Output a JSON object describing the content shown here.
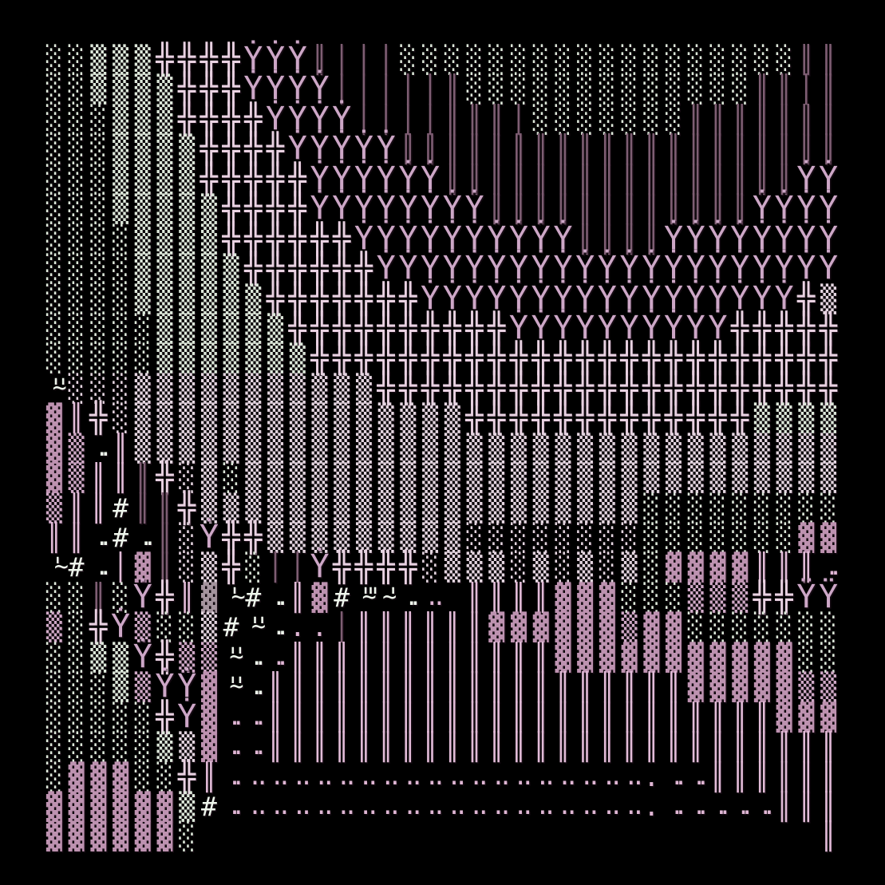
{
  "scene": {
    "kind": "ascii-terrain-map",
    "background": "#000000",
    "glyph_legend": [
      {
        "glyph": "░",
        "name": "light-shade-terrain"
      },
      {
        "glyph": "▒",
        "name": "medium-shade-terrain"
      },
      {
        "glyph": "▓",
        "name": "dark-shade-terrain"
      },
      {
        "glyph": "╬",
        "name": "double-cross-tree"
      },
      {
        "glyph": "Ẏ",
        "name": "tree-one-dot"
      },
      {
        "glyph": "Ÿ",
        "name": "tree-two-dots"
      },
      {
        "glyph": "║",
        "name": "double-pipe-trunk"
      },
      {
        "glyph": "│",
        "name": "single-pipe-trunk"
      },
      {
        "glyph": "#",
        "name": "hash-marker"
      },
      {
        "glyph": "'~'",
        "name": "wave-marker"
      },
      {
        "glyph": ".",
        "name": "dot-ground"
      }
    ]
  },
  "palette": {
    "w": "#dde8da",
    "m": "#e4d6e0",
    "M": "#cfa9c6",
    "B": "#bd92b0",
    "g": "#a5949e",
    "p": "#e9d2e2",
    "P": "#cda7c7",
    "R": "#e2bcd8",
    "d": "#7e5e73",
    "W": "#eef6ec",
    "k": "#dfb6d4"
  },
  "grid": {
    "cols": 36,
    "rows": [
      "░|w,░|w,▒|w,▒|w,▒|w,╬|p,╬|p,╬|p,╬|p,Ẏ|P,Ẏ|P,Ẏ|P,║|d,│|d,│|d,│|d,░|w,░|w,░|w,░|w,░|w,░|w,░|w,░|w,░|w,░|w,░|w,░|w,░|w,░|w,░|w,░|w,░|w,░|w,║|d,║|d",
      "░|w,░|w,▒|w,▒|w,▒|w,▒|w,╬|p,╬|p,╬|p,Ẏ|P,Ẏ|P,Ẏ|P,Ẏ|P,│|d,│|d,│|d,│|d,│|d,║|d,░|w,░|w,░|w,░|w,░|w,░|w,░|w,░|w,░|w,░|w,░|w,░|w,░|w,║|d,║|d,│|d,║|d",
      "░|w,░|w,░|w,▒|w,▒|w,▒|w,╬|p,╬|p,╬|p,╬|p,Ẏ|P,Ẏ|P,Ẏ|P,Ẏ|P,│|d,│|d,│|d,│|d,║|d,║|d,║|d,│|d,░|w,░|w,░|w,░|w,░|w,░|w,░|w,║|d,║|d,║|d,║|d,║|d,║|d,║|d",
      "░|w,░|w,░|w,▒|w,▒|w,▒|w,▒|w,╬|p,╬|p,╬|p,╬|p,Ẏ|P,Ẏ|P,Ẏ|P,Ẏ|P,Ẏ|P,║|d,║|d,║|d,║|d,║|d,║|d,║|d,║|d,║|d,║|d,║|d,║|d,║|d,║|d,║|d,║|d,║|d,║|d,║|d,║|d",
      "░|w,░|w,░|w,▒|w,▒|w,▒|w,▒|w,╬|p,╬|p,╬|p,╬|p,╬|p,Ẏ|P,Ẏ|P,Ẏ|P,Ẏ|P,Ẏ|P,Ẏ|P,║|d,║|d,║|d,║|d,║|d,║|d,║|d,║|d,║|d,║|d,║|d,║|d,║|d,║|d,║|d,║|d,Ẏ|P,Ẏ|P",
      "░|w,░|w,░|w,▒|w,▒|w,▒|w,▒|w,▒|w,╬|p,╬|p,╬|p,╬|p,Ẏ|P,Ẏ|P,Ẏ|P,Ẏ|P,Ẏ|P,Ẏ|P,Ẏ|P,Ẏ|P,║|d,║|d,║|d,║|d,║|d,║|d,║|d,║|d,║|d,║|d,║|d,║|d,Ẏ|P,Ẏ|P,Ẏ|P,Ẏ|P",
      "░|w,░|w,░|w,░|w,▒|w,▒|w,▒|w,▒|w,╬|p,╬|p,╬|p,╬|p,╬|p,╬|p,Ẏ|P,Ẏ|P,Ẏ|P,Ẏ|P,Ẏ|P,Ẏ|P,Ẏ|P,Ẏ|P,Ẏ|P,Ẏ|P,║|d,║|d,║|d,║|d,Ẏ|P,Ẏ|P,Ẏ|P,Ẏ|P,Ẏ|P,Ẏ|P,Ẏ|P,Ẏ|P",
      "░|w,░|w,░|w,░|w,▒|w,▒|w,▒|w,▒|w,▒|w,╬|p,╬|p,╬|p,╬|p,╬|p,╬|p,Ẏ|P,Ẏ|P,Ẏ|P,Ẏ|P,Ẏ|P,Ẏ|P,Ẏ|P,Ẏ|P,Ẏ|P,Ẏ|P,Ẏ|P,Ẏ|P,Ẏ|P,Ẏ|P,Ẏ|P,Ẏ|P,Ẏ|P,Ẏ|P,Ẏ|P,Ẏ|P,Ẏ|P",
      "░|w,░|w,░|w,░|w,▒|w,▒|w,▒|w,▒|w,▒|w,▒|w,╬|p,╬|p,╬|p,╬|p,╬|p,╬|p,╬|p,Ẏ|P,Ẏ|P,Ẏ|P,Ẏ|P,Ẏ|P,Ẏ|P,Ẏ|P,Ẏ|P,Ẏ|P,Ẏ|P,Ẏ|P,Ẏ|P,Ẏ|P,Ẏ|P,Ẏ|P,Ẏ|P,Ẏ|P,╬|p,▒|m",
      "░|w,░|w,░|w,░|w,░|w,▒|w,▒|w,▒|w,▒|w,▒|w,▒|w,╬|p,╬|p,╬|p,╬|p,╬|p,╬|p,╬|p,╬|p,╬|p,╬|p,Ẏ|P,Ẏ|P,Ẏ|P,Ẏ|P,Ẏ|P,Ẏ|P,Ẏ|P,Ẏ|P,Ẏ|P,Ẏ|P,╬|p,╬|p,╬|p,╬|p,╬|p",
      "░|w,░|w,░|w,░|w,░|w,▒|w,▒|w,▒|w,▒|w,▒|w,▒|w,▒|w,╬|p,╬|p,╬|p,╬|p,╬|p,╬|p,╬|p,╬|p,╬|p,╬|p,╬|p,╬|p,╬|p,╬|p,╬|p,╬|p,╬|p,╬|p,╬|p,╬|p,╬|p,╬|p,╬|p,╬|p",
      "'~'|W,░|m,░|m,░|m,▒|m,▒|m,▒|m,▒|m,▒|m,▒|m,▒|m,▒|m,▒|m,▒|m,▒|m,╬|p,╬|p,╬|p,╬|p,╬|p,╬|p,╬|p,╬|p,╬|p,╬|p,╬|p,╬|p,╬|p,╬|p,╬|p,╬|p,╬|p,╬|p,╬|p,╬|p,╬|p",
      "▓|B,║|R,╬|p,░|m,▒|m,▒|m,▒|m,▒|m,▒|m,▒|m,▒|m,▒|m,▒|m,▒|m,▒|m,▒|m,▒|m,▒|m,▒|m,╬|p,╬|p,╬|p,╬|p,╬|p,╬|p,╬|p,╬|p,╬|p,╬|p,╬|p,╬|p,╬|p,▒|w,▒|w,▒|w,▒|w",
      "▓|B,▒|M,..|W,║|R,▒|m,▒|m,▒|m,▒|m,▒|m,▒|m,▒|m,▒|m,▒|m,▒|m,▒|m,▒|m,▒|m,▒|m,▒|m,▒|m,▒|m,▒|m,▒|m,▒|m,▒|m,▒|m,▒|m,▒|m,▒|m,▒|m,▒|m,▒|m,▒|m,▒|m,▒|m,▒|m",
      "▓|B,▒|M,║|R,║|R,║|d,╬|p,░|m,▒|m,░|w,▒|m,▒|m,▒|m,▒|m,▒|m,▒|m,▒|m,▒|m,▒|m,▒|m,▒|m,▒|m,▒|m,▒|m,▒|m,▒|m,▒|m,▒|m,▒|m,▒|m,▒|m,▒|m,▒|m,▒|m,▒|m,▒|m,▒|m",
      "▒|M,║|R,║|R,#|W,║|d,║|d,╬|p,▒|m,▒|m,▒|m,▒|m,▒|m,▒|m,▒|m,▒|m,▒|m,▒|m,▒|m,▒|m,▒|m,▒|m,▒|m,▒|m,▒|m,▒|m,▒|m,▒|m,░|w,░|w,░|w,░|w,░|w,░|w,░|w,░|w,░|w",
      "║|R,║|R,..|W,#|W,..|W,║|d,░|m,Ẏ|P,╬|p,╬|p,▒|m,▒|m,▒|m,▒|m,▒|m,▒|m,▒|m,▒|m,▒|m,░|m,░|m,░|m,░|m,░|m,░|m,░|m,░|m,░|w,░|w,░|w,░|w,░|w,░|w,░|w,▓|B,▓|B",
      "'~|W,#|W,..|W,│|R,▓|B,║|d,░|m,▒|m,╬|p,░|w,│|d,│|d,Ẏ|P,╬|p,╬|p,╬|p,╬|p,░|m,▒|m,▒|m,▒|m,░|m,▒|m,░|m,▒|m,░|m,▒|m,░|w,▓|B,▓|B,▓|B,▓|B,║|R,║|R,║|R,..|k",
      "░|w,░|w,║|d,░|w,Ẏ|P,╬|p,║|R,▓|g,'~|W,#|W,..|W,║|R,▓|B,#|W,'~\"|W,~'|W,..|W,. .|k,,║|R,║|R,║|R,║|R,▓|B,▓|B,▓|B,░|w,░|w,░|w,▒|M,▒|M,▒|M,╬|p,╬|p,Ÿ|P,Ÿ|P",
      "▒|M,░|w,╬|p,Ẏ|P,▒|M,░|w,░|w,▒|m,#|W,'~'|W,..|W,.|k,.|k,│|d,║|R,║|R,║|R,║|R,║|R,║|R,▓|B,▓|B,▓|B,▓|B,▓|B,▓|B,▒|M,▓|B,▓|B,░|w,░|w,░|w,░|w,░|w,░|w,░|w",
      "░|w,░|w,▒|w,▒|w,Ẏ|P,╬|p,▒|M,▒|M,'~'|W,..|W,..|k,║|R,║|R,║|R,║|R,║|R,║|R,║|R,║|R,║|R,║|R,║|R,║|R,▓|B,▓|B,▓|B,▓|B,▓|B,▓|B,▓|B,▓|B,▓|B,▓|B,▓|B,░|w,░|w",
      "░|w,░|w,░|w,▒|w,▒|M,Ẏ|P,Ẏ|P,▓|B,'~'|W,..|W,║|R,║|R,║|R,║|R,║|R,║|R,║|R,║|R,║|R,║|R,║|R,║|R,║|R,║|R,║|R,║|R,║|R,║|R,║|R,▓|B,▓|B,▓|B,▓|B,▓|B,▒|M,▒|M",
      "░|w,░|w,░|w,░|w,░|w,╬|p,Ẏ|P,▓|B,..|k,..|k,║|R,║|R,║|R,║|R,║|R,║|R,║|R,║|R,║|R,║|R,║|R,║|R,║|R,║|R,║|R,║|R,║|R,║|R,║|R,║|R,║|R,║|R,║|R,▓|B,▓|B,▓|B",
      "░|w,░|w,░|w,░|w,░|w,▒|w,▒|m,▓|B,..|k,..|k,║|R,║|R,║|R,║|R,║|R,║|R,║|R,║|R,║|R,║|R,║|R,║|R,║|R,║|R,║|R,║|R,║|R,║|R,║|R,║|R,║|R,║|R,║|R,║|R,║|R,║|R",
      "░|w,▓|B,▓|B,▓|B,░|w,░|w,╬|p,║|R,..|k,. .|k,. .|k,. .|k,. .|k,. .|k,. .|k,. .|k,. .|k,. .|k,. .|k,. .|k,. .|k,. .|k,. .|k,. .|k,. .|k,. .|k,. .|k,.|k,..|k,..|k,║|R,║|R,║|R,║|R,║|R,║|R",
      "▓|B,▓|B,▓|B,▓|B,▓|B,▓|B,▒|w,#|W,..|k,. .|k,. .|k,. .|k,. .|k,. .|k,. .|k,. .|k,. .|k,. .|k,. .|k,. .|k,. .|k,. .|k,. .|k,. .|k,. .|k,. .|k,. .|k,.|k,..|k,..|k,..|k,..|k,..|k,║|R,║|R,║|R",
      "▓|B,▓|B,▓|B,▓|B,▓|B,▓|B,░|w,,,,,,,,,,,,,,,,,,,,,,,,,,,,,║|R"
    ]
  }
}
